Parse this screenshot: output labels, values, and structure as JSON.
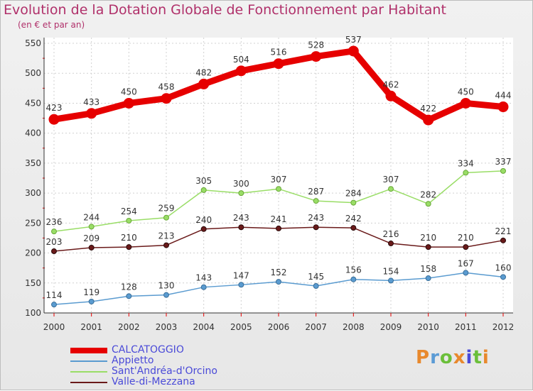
{
  "header": {
    "title": "Evolution de la Dotation Globale de Fonctionnement par Habitant",
    "subtitle": "(en € et par an)"
  },
  "logo": {
    "letters": [
      "P",
      "r",
      "o",
      "x",
      "i",
      "t",
      "i"
    ],
    "colors": [
      "#e8892d",
      "#5b9bd5",
      "#6bbf3a",
      "#e8892d",
      "#4a4ad8",
      "#6bbf3a",
      "#e8892d"
    ]
  },
  "chart_data": {
    "type": "line",
    "title": "Evolution de la Dotation Globale de Fonctionnement par Habitant",
    "subtitle": "(en € et par an)",
    "x": [
      "2000",
      "2001",
      "2002",
      "2003",
      "2004",
      "2005",
      "2006",
      "2007",
      "2008",
      "2009",
      "2010",
      "2011",
      "2012"
    ],
    "ylim": [
      100,
      550
    ],
    "yticks": [
      100,
      150,
      200,
      250,
      300,
      350,
      400,
      450,
      500,
      550
    ],
    "grid": true,
    "legend_position": "bottom-left",
    "series": [
      {
        "name": "CALCATOGGIO",
        "color": "#e60000",
        "values": [
          423,
          433,
          450,
          458,
          482,
          504,
          516,
          528,
          537,
          462,
          422,
          450,
          444
        ]
      },
      {
        "name": "Appietto",
        "color": "#5a9bd0",
        "values": [
          114,
          119,
          128,
          130,
          143,
          147,
          152,
          145,
          156,
          154,
          158,
          167,
          160
        ]
      },
      {
        "name": "Sant'Andréa-d'Orcino",
        "color": "#99dd66",
        "values": [
          236,
          244,
          254,
          259,
          305,
          300,
          307,
          287,
          284,
          307,
          282,
          334,
          337
        ]
      },
      {
        "name": "Valle-di-Mezzana",
        "color": "#6a1a1a",
        "values": [
          203,
          209,
          210,
          213,
          240,
          243,
          241,
          243,
          242,
          216,
          210,
          210,
          221
        ]
      }
    ]
  }
}
